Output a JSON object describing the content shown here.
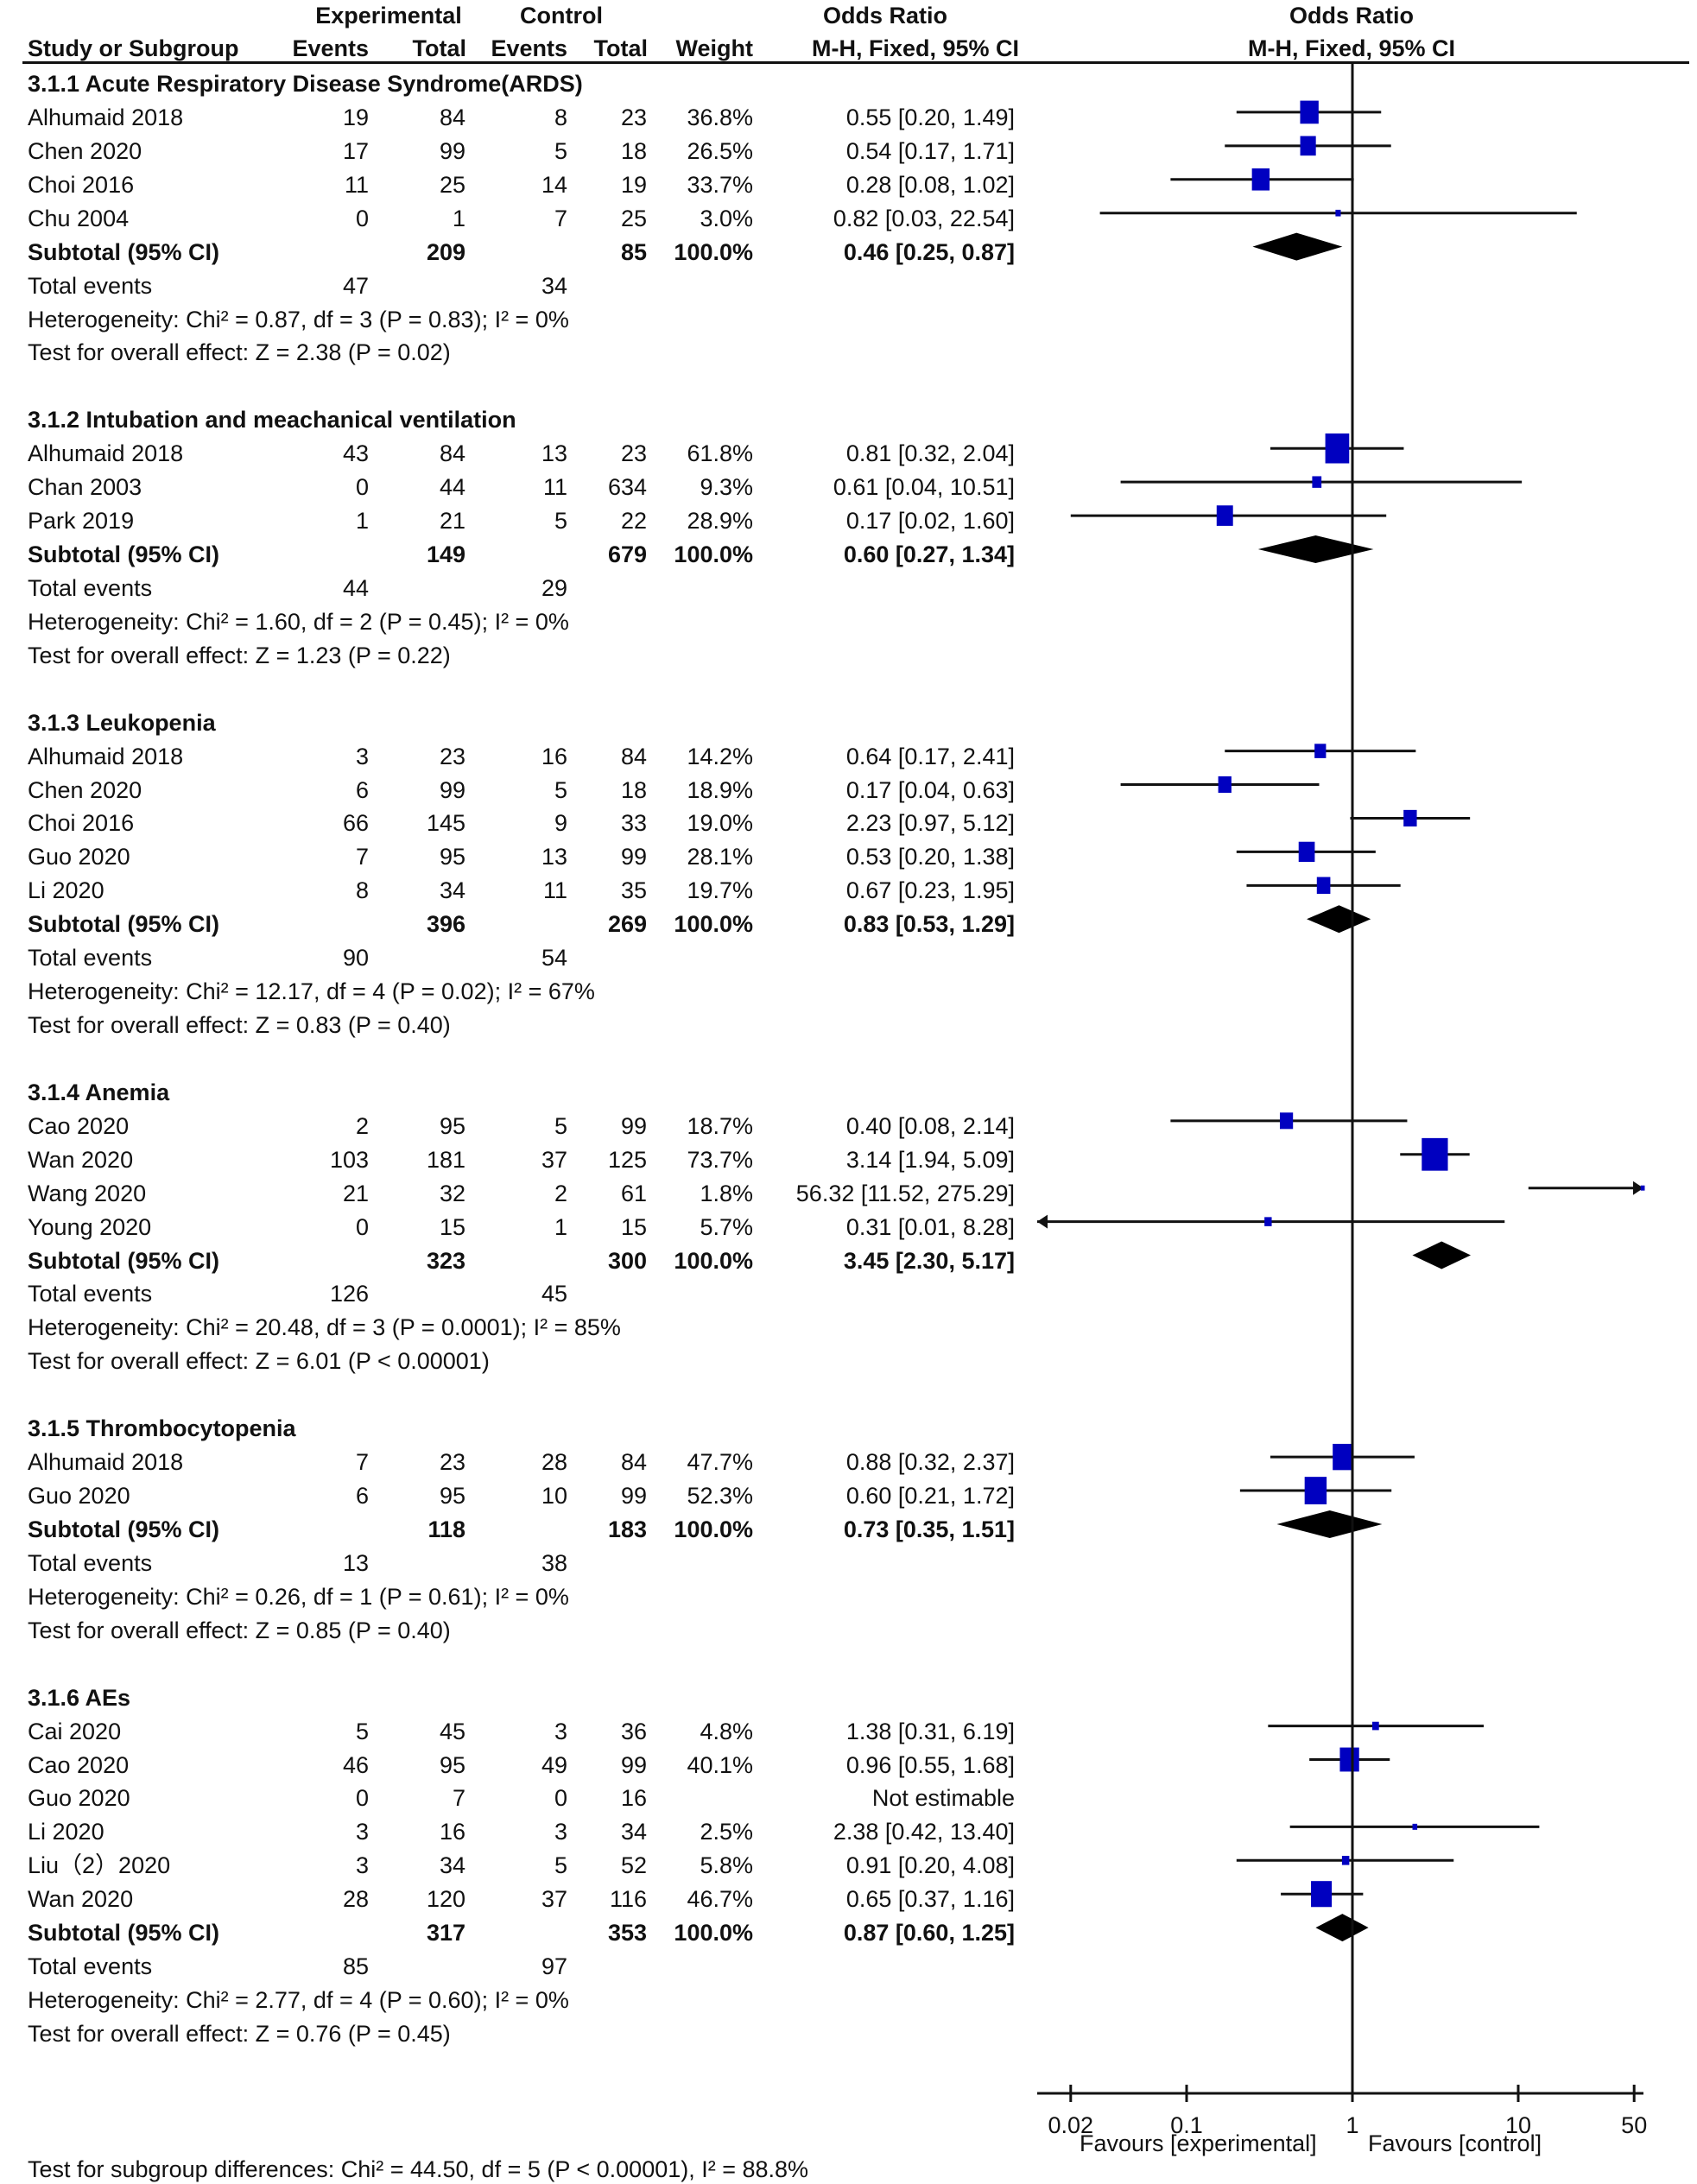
{
  "chart_data": {
    "type": "forest",
    "title": "",
    "header": {
      "study_col": "Study or Subgroup",
      "experimental_group": "Experimental",
      "control_group": "Control",
      "events": "Events",
      "total": "Total",
      "weight": "Weight",
      "or_title": "Odds Ratio",
      "or_method": "M-H, Fixed, 95% CI",
      "plot_title": "Odds Ratio",
      "plot_method": "M-H, Fixed, 95% CI"
    },
    "x_axis": {
      "scale": "log",
      "range": [
        0.02,
        50
      ],
      "ticks": [
        0.02,
        0.1,
        1,
        10,
        50
      ],
      "tick_labels": [
        "0.02",
        "0.1",
        "1",
        "10",
        "50"
      ],
      "left_label": "Favours [experimental]",
      "right_label": "Favours [control]"
    },
    "subgroups": [
      {
        "title": "3.1.1 Acute Respiratory Disease Syndrome(ARDS)",
        "studies": [
          {
            "name": "Alhumaid 2018",
            "exp_events": "19",
            "exp_total": "84",
            "ctl_events": "8",
            "ctl_total": "23",
            "weight": "36.8%",
            "or_text": "0.55 [0.20, 1.49]",
            "or": 0.55,
            "lo": 0.2,
            "hi": 1.49,
            "w": 36.8
          },
          {
            "name": "Chen 2020",
            "exp_events": "17",
            "exp_total": "99",
            "ctl_events": "5",
            "ctl_total": "18",
            "weight": "26.5%",
            "or_text": "0.54 [0.17, 1.71]",
            "or": 0.54,
            "lo": 0.17,
            "hi": 1.71,
            "w": 26.5
          },
          {
            "name": "Choi 2016",
            "exp_events": "11",
            "exp_total": "25",
            "ctl_events": "14",
            "ctl_total": "19",
            "weight": "33.7%",
            "or_text": "0.28 [0.08, 1.02]",
            "or": 0.28,
            "lo": 0.08,
            "hi": 1.02,
            "w": 33.7
          },
          {
            "name": "Chu 2004",
            "exp_events": "0",
            "exp_total": "1",
            "ctl_events": "7",
            "ctl_total": "25",
            "weight": "3.0%",
            "or_text": "0.82 [0.03, 22.54]",
            "or": 0.82,
            "lo": 0.03,
            "hi": 22.54,
            "w": 3.0
          }
        ],
        "subtotal": {
          "label": "Subtotal (95% CI)",
          "exp_total": "209",
          "ctl_total": "85",
          "weight": "100.0%",
          "or_text": "0.46 [0.25, 0.87]",
          "or": 0.46,
          "lo": 0.25,
          "hi": 0.87
        },
        "total_events": {
          "label": "Total events",
          "exp": "47",
          "ctl": "34"
        },
        "heterogeneity": "Heterogeneity: Chi² = 0.87, df = 3 (P = 0.83); I² = 0%",
        "overall_effect": "Test for overall effect: Z = 2.38 (P = 0.02)"
      },
      {
        "title": "3.1.2 Intubation and meachanical ventilation",
        "studies": [
          {
            "name": "Alhumaid 2018",
            "exp_events": "43",
            "exp_total": "84",
            "ctl_events": "13",
            "ctl_total": "23",
            "weight": "61.8%",
            "or_text": "0.81 [0.32, 2.04]",
            "or": 0.81,
            "lo": 0.32,
            "hi": 2.04,
            "w": 61.8
          },
          {
            "name": "Chan 2003",
            "exp_events": "0",
            "exp_total": "44",
            "ctl_events": "11",
            "ctl_total": "634",
            "weight": "9.3%",
            "or_text": "0.61 [0.04, 10.51]",
            "or": 0.61,
            "lo": 0.04,
            "hi": 10.51,
            "w": 9.3
          },
          {
            "name": "Park 2019",
            "exp_events": "1",
            "exp_total": "21",
            "ctl_events": "5",
            "ctl_total": "22",
            "weight": "28.9%",
            "or_text": "0.17 [0.02, 1.60]",
            "or": 0.17,
            "lo": 0.02,
            "hi": 1.6,
            "w": 28.9
          }
        ],
        "subtotal": {
          "label": "Subtotal (95% CI)",
          "exp_total": "149",
          "ctl_total": "679",
          "weight": "100.0%",
          "or_text": "0.60 [0.27, 1.34]",
          "or": 0.6,
          "lo": 0.27,
          "hi": 1.34
        },
        "total_events": {
          "label": "Total events",
          "exp": "44",
          "ctl": "29"
        },
        "heterogeneity": "Heterogeneity: Chi² = 1.60, df = 2 (P = 0.45); I² = 0%",
        "overall_effect": "Test for overall effect: Z = 1.23 (P = 0.22)"
      },
      {
        "title": "3.1.3 Leukopenia",
        "studies": [
          {
            "name": "Alhumaid 2018",
            "exp_events": "3",
            "exp_total": "23",
            "ctl_events": "16",
            "ctl_total": "84",
            "weight": "14.2%",
            "or_text": "0.64 [0.17, 2.41]",
            "or": 0.64,
            "lo": 0.17,
            "hi": 2.41,
            "w": 14.2
          },
          {
            "name": "Chen 2020",
            "exp_events": "6",
            "exp_total": "99",
            "ctl_events": "5",
            "ctl_total": "18",
            "weight": "18.9%",
            "or_text": "0.17 [0.04, 0.63]",
            "or": 0.17,
            "lo": 0.04,
            "hi": 0.63,
            "w": 18.9
          },
          {
            "name": "Choi 2016",
            "exp_events": "66",
            "exp_total": "145",
            "ctl_events": "9",
            "ctl_total": "33",
            "weight": "19.0%",
            "or_text": "2.23 [0.97, 5.12]",
            "or": 2.23,
            "lo": 0.97,
            "hi": 5.12,
            "w": 19.0
          },
          {
            "name": "Guo 2020",
            "exp_events": "7",
            "exp_total": "95",
            "ctl_events": "13",
            "ctl_total": "99",
            "weight": "28.1%",
            "or_text": "0.53 [0.20, 1.38]",
            "or": 0.53,
            "lo": 0.2,
            "hi": 1.38,
            "w": 28.1
          },
          {
            "name": "Li 2020",
            "exp_events": "8",
            "exp_total": "34",
            "ctl_events": "11",
            "ctl_total": "35",
            "weight": "19.7%",
            "or_text": "0.67 [0.23, 1.95]",
            "or": 0.67,
            "lo": 0.23,
            "hi": 1.95,
            "w": 19.7
          }
        ],
        "subtotal": {
          "label": "Subtotal (95% CI)",
          "exp_total": "396",
          "ctl_total": "269",
          "weight": "100.0%",
          "or_text": "0.83 [0.53, 1.29]",
          "or": 0.83,
          "lo": 0.53,
          "hi": 1.29
        },
        "total_events": {
          "label": "Total events",
          "exp": "90",
          "ctl": "54"
        },
        "heterogeneity": "Heterogeneity: Chi² = 12.17, df = 4 (P = 0.02); I² = 67%",
        "overall_effect": "Test for overall effect: Z = 0.83 (P = 0.40)"
      },
      {
        "title": "3.1.4 Anemia",
        "studies": [
          {
            "name": "Cao 2020",
            "exp_events": "2",
            "exp_total": "95",
            "ctl_events": "5",
            "ctl_total": "99",
            "weight": "18.7%",
            "or_text": "0.40 [0.08, 2.14]",
            "or": 0.4,
            "lo": 0.08,
            "hi": 2.14,
            "w": 18.7
          },
          {
            "name": "Wan 2020",
            "exp_events": "103",
            "exp_total": "181",
            "ctl_events": "37",
            "ctl_total": "125",
            "weight": "73.7%",
            "or_text": "3.14 [1.94, 5.09]",
            "or": 3.14,
            "lo": 1.94,
            "hi": 5.09,
            "w": 73.7
          },
          {
            "name": "Wang 2020",
            "exp_events": "21",
            "exp_total": "32",
            "ctl_events": "2",
            "ctl_total": "61",
            "weight": "1.8%",
            "or_text": "56.32 [11.52, 275.29]",
            "or": 56.32,
            "lo": 11.52,
            "hi": 275.29,
            "w": 1.8
          },
          {
            "name": "Young 2020",
            "exp_events": "0",
            "exp_total": "15",
            "ctl_events": "1",
            "ctl_total": "15",
            "weight": "5.7%",
            "or_text": "0.31 [0.01, 8.28]",
            "or": 0.31,
            "lo": 0.01,
            "hi": 8.28,
            "w": 5.7
          }
        ],
        "subtotal": {
          "label": "Subtotal (95% CI)",
          "exp_total": "323",
          "ctl_total": "300",
          "weight": "100.0%",
          "or_text": "3.45 [2.30, 5.17]",
          "or": 3.45,
          "lo": 2.3,
          "hi": 5.17
        },
        "total_events": {
          "label": "Total events",
          "exp": "126",
          "ctl": "45"
        },
        "heterogeneity": "Heterogeneity: Chi² = 20.48, df = 3 (P = 0.0001); I² = 85%",
        "overall_effect": "Test for overall effect: Z = 6.01 (P < 0.00001)"
      },
      {
        "title": "3.1.5 Thrombocytopenia",
        "studies": [
          {
            "name": "Alhumaid 2018",
            "exp_events": "7",
            "exp_total": "23",
            "ctl_events": "28",
            "ctl_total": "84",
            "weight": "47.7%",
            "or_text": "0.88 [0.32, 2.37]",
            "or": 0.88,
            "lo": 0.32,
            "hi": 2.37,
            "w": 47.7
          },
          {
            "name": "Guo 2020",
            "exp_events": "6",
            "exp_total": "95",
            "ctl_events": "10",
            "ctl_total": "99",
            "weight": "52.3%",
            "or_text": "0.60 [0.21, 1.72]",
            "or": 0.6,
            "lo": 0.21,
            "hi": 1.72,
            "w": 52.3
          }
        ],
        "subtotal": {
          "label": "Subtotal (95% CI)",
          "exp_total": "118",
          "ctl_total": "183",
          "weight": "100.0%",
          "or_text": "0.73 [0.35, 1.51]",
          "or": 0.73,
          "lo": 0.35,
          "hi": 1.51
        },
        "total_events": {
          "label": "Total events",
          "exp": "13",
          "ctl": "38"
        },
        "heterogeneity": "Heterogeneity: Chi² = 0.26, df = 1 (P = 0.61); I² = 0%",
        "overall_effect": "Test for overall effect: Z = 0.85 (P = 0.40)"
      },
      {
        "title": "3.1.6 AEs",
        "studies": [
          {
            "name": "Cai 2020",
            "exp_events": "5",
            "exp_total": "45",
            "ctl_events": "3",
            "ctl_total": "36",
            "weight": "4.8%",
            "or_text": "1.38 [0.31, 6.19]",
            "or": 1.38,
            "lo": 0.31,
            "hi": 6.19,
            "w": 4.8
          },
          {
            "name": "Cao 2020",
            "exp_events": "46",
            "exp_total": "95",
            "ctl_events": "49",
            "ctl_total": "99",
            "weight": "40.1%",
            "or_text": "0.96 [0.55, 1.68]",
            "or": 0.96,
            "lo": 0.55,
            "hi": 1.68,
            "w": 40.1
          },
          {
            "name": "Guo 2020",
            "exp_events": "0",
            "exp_total": "7",
            "ctl_events": "0",
            "ctl_total": "16",
            "weight": "",
            "or_text": "Not estimable",
            "or": null,
            "lo": null,
            "hi": null,
            "w": 0
          },
          {
            "name": "Li 2020",
            "exp_events": "3",
            "exp_total": "16",
            "ctl_events": "3",
            "ctl_total": "34",
            "weight": "2.5%",
            "or_text": "2.38 [0.42, 13.40]",
            "or": 2.38,
            "lo": 0.42,
            "hi": 13.4,
            "w": 2.5
          },
          {
            "name": "Liu（2）2020",
            "exp_events": "3",
            "exp_total": "34",
            "ctl_events": "5",
            "ctl_total": "52",
            "weight": "5.8%",
            "or_text": "0.91 [0.20, 4.08]",
            "or": 0.91,
            "lo": 0.2,
            "hi": 4.08,
            "w": 5.8
          },
          {
            "name": "Wan 2020",
            "exp_events": "28",
            "exp_total": "120",
            "ctl_events": "37",
            "ctl_total": "116",
            "weight": "46.7%",
            "or_text": "0.65 [0.37, 1.16]",
            "or": 0.65,
            "lo": 0.37,
            "hi": 1.16,
            "w": 46.7
          }
        ],
        "subtotal": {
          "label": "Subtotal (95% CI)",
          "exp_total": "317",
          "ctl_total": "353",
          "weight": "100.0%",
          "or_text": "0.87 [0.60, 1.25]",
          "or": 0.87,
          "lo": 0.6,
          "hi": 1.25
        },
        "total_events": {
          "label": "Total events",
          "exp": "85",
          "ctl": "97"
        },
        "heterogeneity": "Heterogeneity: Chi² = 2.77, df = 4 (P = 0.60); I² = 0%",
        "overall_effect": "Test for overall effect: Z = 0.76 (P = 0.45)"
      }
    ],
    "subgroup_differences": "Test for subgroup differences: Chi² = 44.50, df = 5 (P < 0.00001), I² = 88.8%",
    "colors": {
      "study_marker": "#0000c0",
      "diamond": "#000000",
      "line": "#111111"
    }
  }
}
